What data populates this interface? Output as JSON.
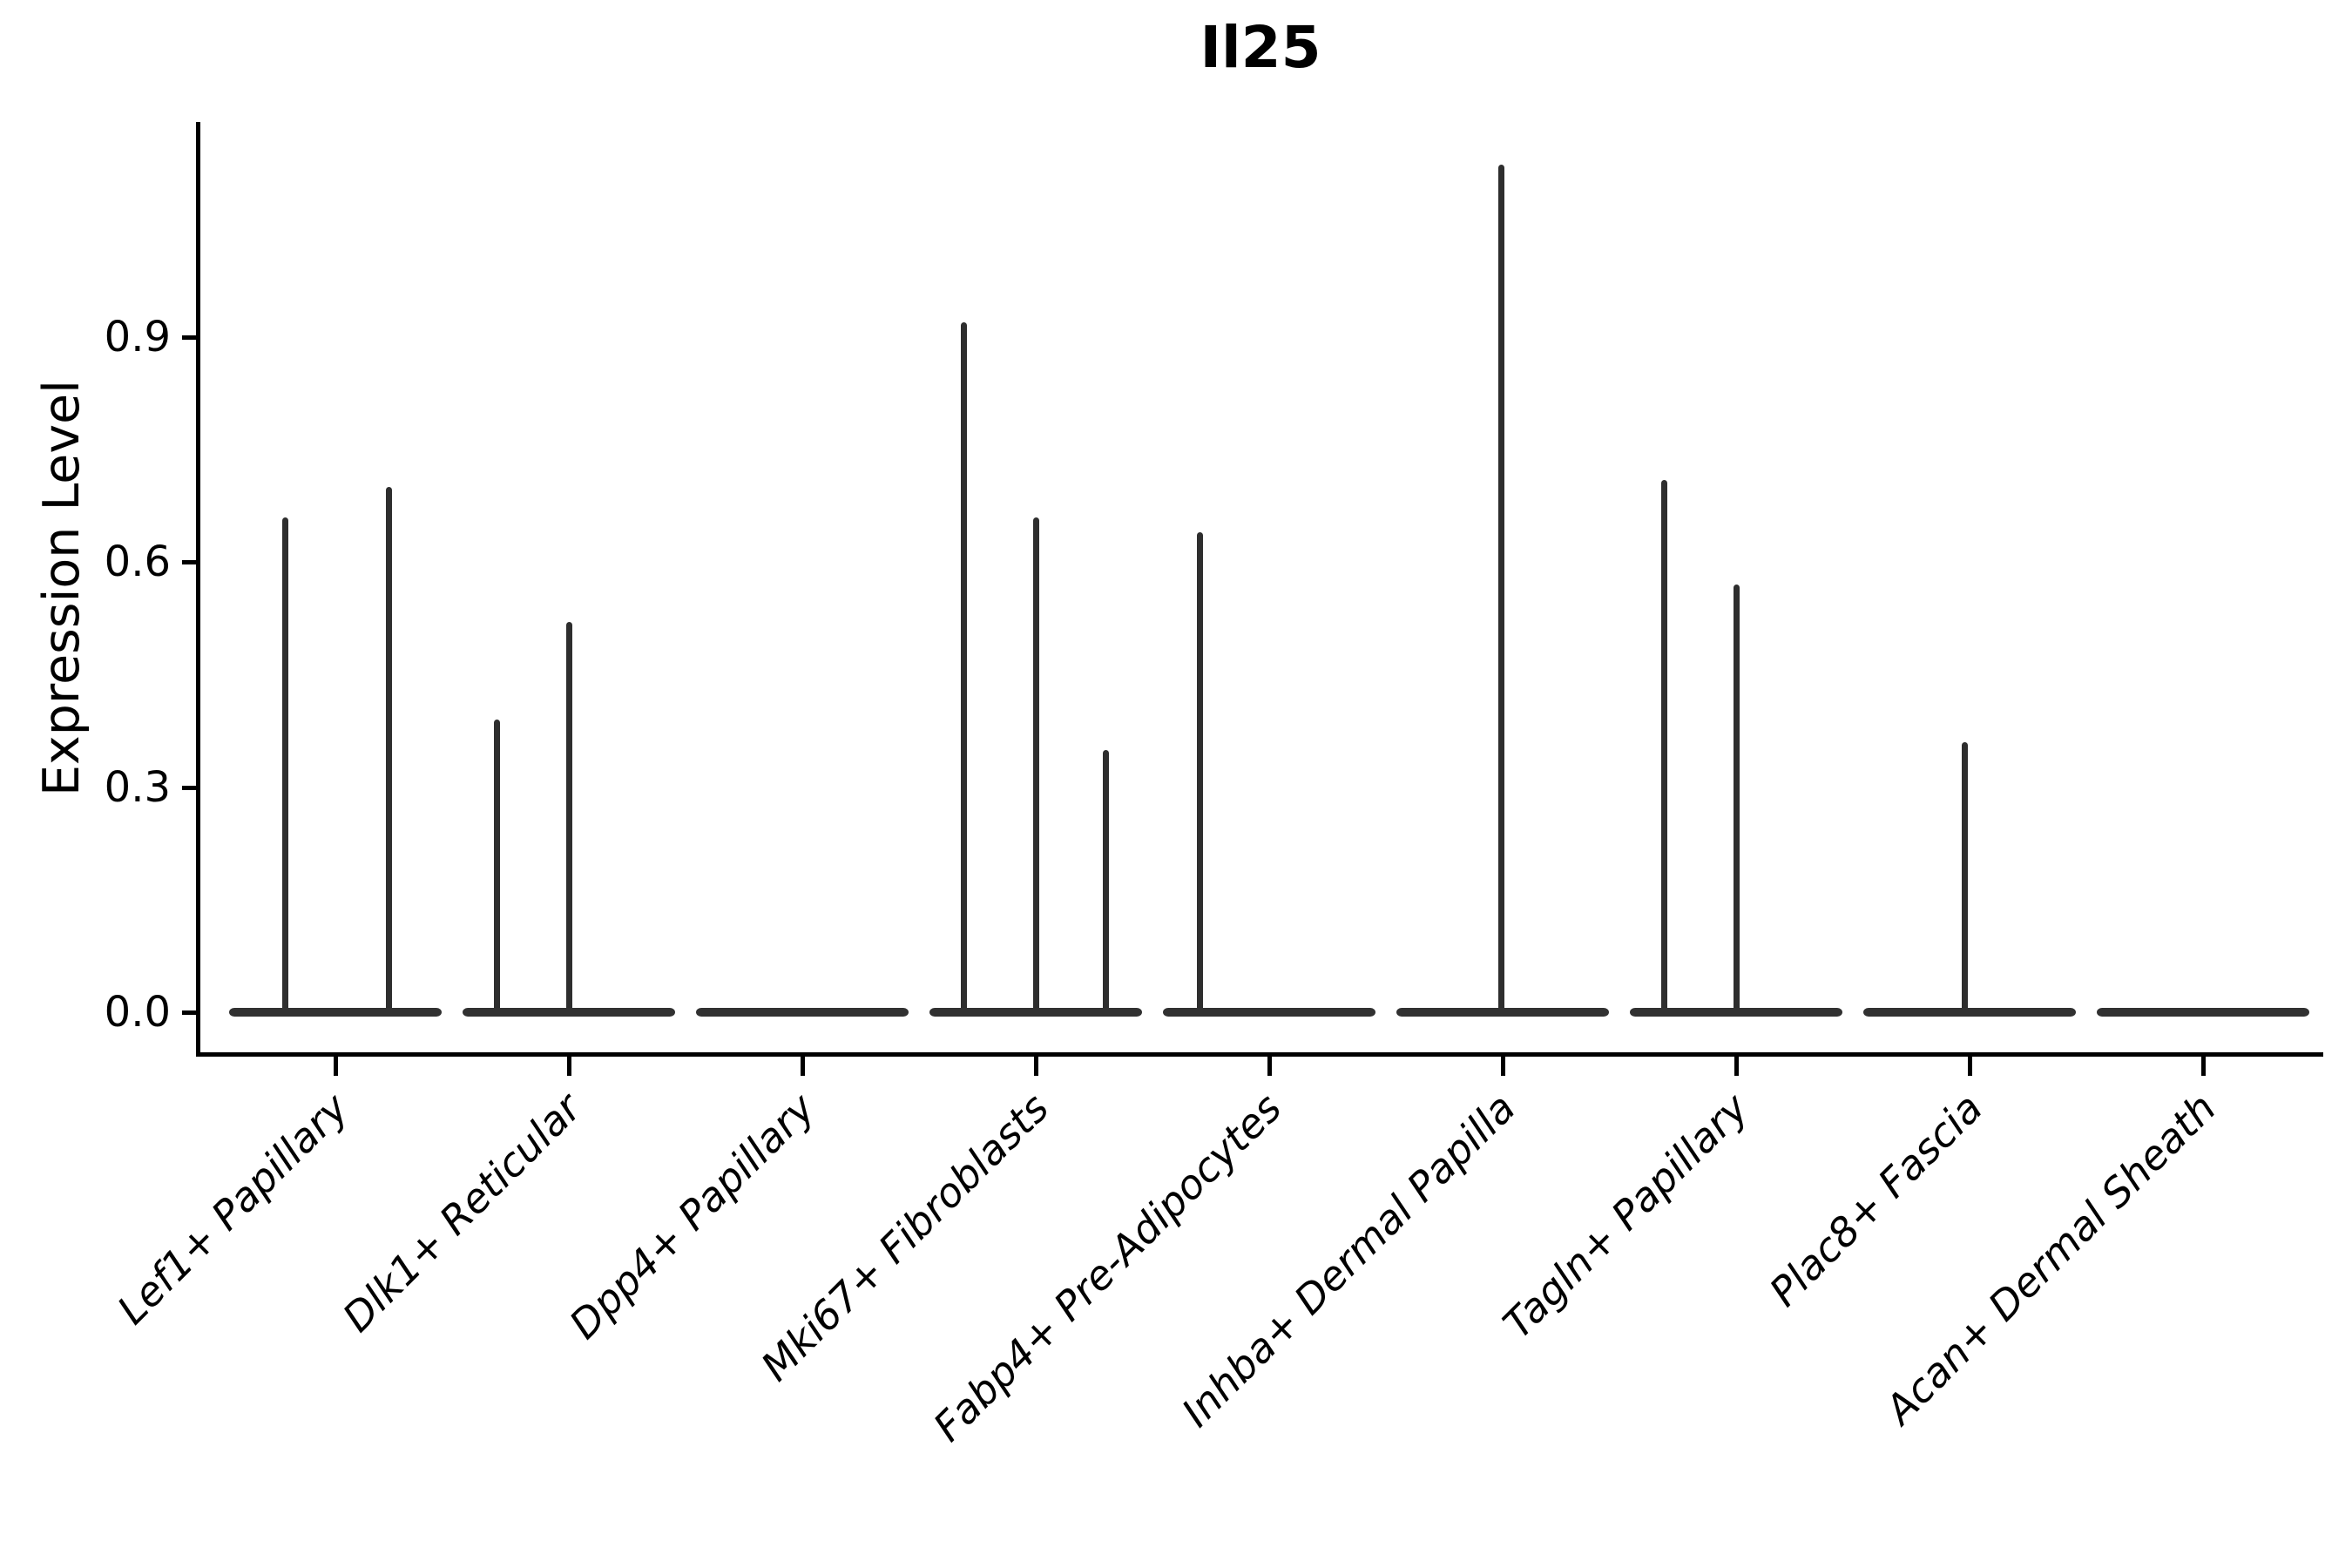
{
  "chart_data": {
    "type": "violin",
    "title": "Il25",
    "ylabel": "Expression Level",
    "xlabel": "",
    "grid": false,
    "legend_position": "none",
    "ylim": [
      -0.05,
      1.19
    ],
    "ytick_labels": [
      "0.0",
      "0.3",
      "0.6",
      "0.9"
    ],
    "ytick_values": [
      0.0,
      0.3,
      0.6,
      0.9
    ],
    "categories": [
      "Lef1+ Papillary",
      "Dlk1+ Reticular",
      "Dpp4+ Papillary",
      "Mki67+ Fibroblasts",
      "Fabp4+ Pre-Adipocytes",
      "Inhba+ Dermal Papilla",
      "Tagln+ Papillary",
      "Plac8+ Fascia",
      "Acan+ Dermal Sheath"
    ],
    "violins": [
      {
        "category": "Lef1+ Papillary",
        "base_halfwidth_frac": 0.455,
        "expression_peaks": [
          {
            "offset_frac": -0.216,
            "value": 0.66
          },
          {
            "offset_frac": 0.228,
            "value": 0.7
          }
        ]
      },
      {
        "category": "Dlk1+ Reticular",
        "base_halfwidth_frac": 0.455,
        "expression_peaks": [
          {
            "offset_frac": -0.306,
            "value": 0.39
          },
          {
            "offset_frac": 0.0,
            "value": 0.52
          }
        ]
      },
      {
        "category": "Dpp4+ Papillary",
        "base_halfwidth_frac": 0.455,
        "expression_peaks": []
      },
      {
        "category": "Mki67+ Fibroblasts",
        "base_halfwidth_frac": 0.455,
        "expression_peaks": [
          {
            "offset_frac": -0.306,
            "value": 0.92
          },
          {
            "offset_frac": 0.0,
            "value": 0.66
          },
          {
            "offset_frac": 0.302,
            "value": 0.35
          }
        ]
      },
      {
        "category": "Fabp4+ Pre-Adipocytes",
        "base_halfwidth_frac": 0.455,
        "expression_peaks": [
          {
            "offset_frac": -0.298,
            "value": 0.64
          }
        ]
      },
      {
        "category": "Inhba+ Dermal Papilla",
        "base_halfwidth_frac": 0.455,
        "expression_peaks": [
          {
            "offset_frac": -0.007,
            "value": 1.13
          }
        ]
      },
      {
        "category": "Tagln+ Papillary",
        "base_halfwidth_frac": 0.455,
        "expression_peaks": [
          {
            "offset_frac": -0.306,
            "value": 0.71
          },
          {
            "offset_frac": 0.0,
            "value": 0.57
          }
        ]
      },
      {
        "category": "Plac8+ Fascia",
        "base_halfwidth_frac": 0.455,
        "expression_peaks": [
          {
            "offset_frac": -0.022,
            "value": 0.36
          }
        ]
      },
      {
        "category": "Acan+ Dermal Sheath",
        "base_halfwidth_frac": 0.455,
        "expression_peaks": []
      }
    ],
    "colors": {
      "violin": "#2e2e2e",
      "axis": "#000000",
      "text": "#000000",
      "background": "#ffffff"
    }
  }
}
